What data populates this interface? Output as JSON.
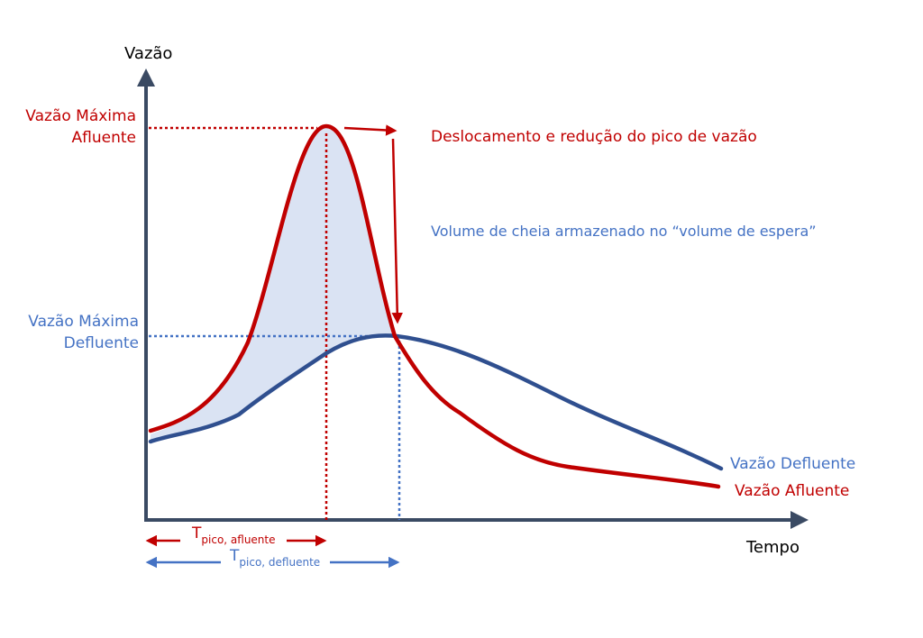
{
  "axes": {
    "y_label": "Vazão",
    "x_label": "Tempo"
  },
  "labels": {
    "peak_in_line1": "Vazão Máxima",
    "peak_in_line2": "Afluente",
    "peak_out_line1": "Vazão Máxima",
    "peak_out_line2": "Defluente",
    "shift_text": "Deslocamento e redução do pico de vazão",
    "volume_text": "Volume de cheia armazenado no “volume de espera”",
    "series_outflow": "Vazão Defluente",
    "series_inflow": "Vazão Afluente",
    "t_letter": "T",
    "t_in_sub": "pico, afluente",
    "t_out_sub": "pico, defluente"
  },
  "colors": {
    "inflow": "#c00000",
    "outflow": "#2f4f8f",
    "outflow_text": "#4472c4",
    "shading": "#dae3f3",
    "axis": "#3a4a63",
    "text": "#000000"
  }
}
